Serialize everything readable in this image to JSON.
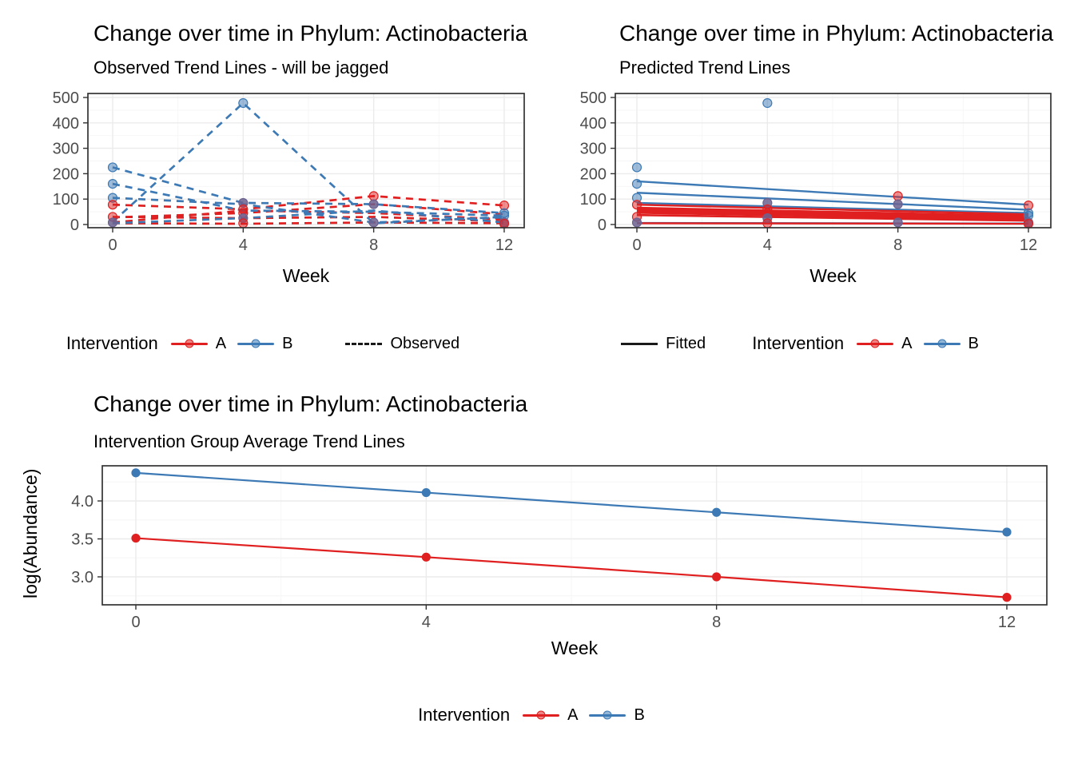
{
  "colors": {
    "A": "#E02020",
    "B": "#3D7AB5",
    "AB": "#6C6290",
    "grid_major": "#EBEBEB",
    "grid_minor": "#F5F5F5",
    "panel_border": "#333333",
    "tick_text": "#4D4D4D",
    "legend_line": "#1A1A1A"
  },
  "legends": {
    "observed": {
      "title": "Intervention",
      "item_a": "A",
      "item_b": "B",
      "linetype_label": "Observed"
    },
    "predicted": {
      "linetype_label": "Fitted",
      "title": "Intervention",
      "item_a": "A",
      "item_b": "B"
    },
    "average": {
      "title": "Intervention",
      "item_a": "A",
      "item_b": "B"
    }
  },
  "chart_data": [
    {
      "id": "observed",
      "type": "line",
      "title": "Change over time in Phylum: Actinobacteria",
      "subtitle": "Observed Trend Lines - will be jagged",
      "xlabel": "Week",
      "ylabel": "",
      "x": [
        0,
        4,
        8,
        12
      ],
      "x_ticks": [
        0,
        4,
        8,
        12
      ],
      "x_tick_labels": [
        "0",
        "4",
        "8",
        "12"
      ],
      "y_ticks": [
        0,
        100,
        200,
        300,
        400,
        500
      ],
      "y_tick_labels": [
        "0",
        "100",
        "200",
        "300",
        "400",
        "500"
      ],
      "ylim": [
        -13,
        515
      ],
      "linetype": "dashed",
      "legend_position": "bottom",
      "series": [
        {
          "group": "A",
          "values": [
            78,
            60,
            112,
            75
          ]
        },
        {
          "group": "A",
          "values": [
            28,
            45,
            80,
            40
          ]
        },
        {
          "group": "A",
          "values": [
            8,
            55,
            45,
            20
          ]
        },
        {
          "group": "A",
          "values": [
            30,
            25,
            30,
            12
          ]
        },
        {
          "group": "A",
          "values": [
            5,
            3,
            8,
            5
          ]
        },
        {
          "group": "B",
          "values": [
            225,
            85,
            80,
            45
          ]
        },
        {
          "group": "B",
          "values": [
            160,
            55,
            50,
            35
          ]
        },
        {
          "group": "B",
          "values": [
            105,
            80,
            8,
            28
          ]
        },
        {
          "group": "B",
          "values": [
            10,
            478,
            5,
            30
          ]
        },
        {
          "group": "B",
          "values": [
            5,
            25,
            55,
            8
          ]
        }
      ],
      "points": [
        {
          "x": 0,
          "y": 225,
          "g": "B"
        },
        {
          "x": 0,
          "y": 160,
          "g": "B"
        },
        {
          "x": 0,
          "y": 105,
          "g": "B"
        },
        {
          "x": 0,
          "y": 78,
          "g": "A"
        },
        {
          "x": 0,
          "y": 30,
          "g": "A"
        },
        {
          "x": 0,
          "y": 8,
          "g": "AB"
        },
        {
          "x": 4,
          "y": 478,
          "g": "B"
        },
        {
          "x": 4,
          "y": 85,
          "g": "AB"
        },
        {
          "x": 4,
          "y": 60,
          "g": "A"
        },
        {
          "x": 4,
          "y": 45,
          "g": "A"
        },
        {
          "x": 4,
          "y": 25,
          "g": "AB"
        },
        {
          "x": 4,
          "y": 5,
          "g": "A"
        },
        {
          "x": 8,
          "y": 112,
          "g": "A"
        },
        {
          "x": 8,
          "y": 80,
          "g": "AB"
        },
        {
          "x": 8,
          "y": 8,
          "g": "AB"
        },
        {
          "x": 12,
          "y": 75,
          "g": "A"
        },
        {
          "x": 12,
          "y": 45,
          "g": "B"
        },
        {
          "x": 12,
          "y": 35,
          "g": "B"
        },
        {
          "x": 12,
          "y": 8,
          "g": "AB"
        },
        {
          "x": 12,
          "y": 3,
          "g": "A"
        }
      ]
    },
    {
      "id": "predicted",
      "type": "line",
      "title": "Change over time in Phylum: Actinobacteria",
      "subtitle": "Predicted Trend Lines",
      "xlabel": "Week",
      "ylabel": "",
      "x": [
        0,
        4,
        8,
        12
      ],
      "x_ticks": [
        0,
        4,
        8,
        12
      ],
      "x_tick_labels": [
        "0",
        "4",
        "8",
        "12"
      ],
      "y_ticks": [
        0,
        100,
        200,
        300,
        400,
        500
      ],
      "y_tick_labels": [
        "0",
        "100",
        "200",
        "300",
        "400",
        "500"
      ],
      "ylim": [
        -13,
        515
      ],
      "linetype": "solid",
      "legend_position": "bottom",
      "series": [
        {
          "group": "B",
          "x": [
            0,
            12
          ],
          "values": [
            170,
            78
          ],
          "w": 2.4
        },
        {
          "group": "B",
          "x": [
            0,
            12
          ],
          "values": [
            125,
            58
          ],
          "w": 2.4
        },
        {
          "group": "B",
          "x": [
            0,
            12
          ],
          "values": [
            85,
            45
          ],
          "w": 2.4
        },
        {
          "group": "B",
          "x": [
            0,
            12
          ],
          "values": [
            6,
            4
          ],
          "w": 2.4
        },
        {
          "group": "A",
          "x": [
            0,
            12
          ],
          "values": [
            78,
            40
          ],
          "w": 2.4
        },
        {
          "group": "A",
          "x": [
            0,
            12
          ],
          "values": [
            62,
            30
          ],
          "w": 5
        },
        {
          "group": "A",
          "x": [
            0,
            12
          ],
          "values": [
            55,
            25
          ],
          "w": 5
        },
        {
          "group": "A",
          "x": [
            0,
            12
          ],
          "values": [
            47,
            21
          ],
          "w": 3.2
        },
        {
          "group": "A",
          "x": [
            0,
            12
          ],
          "values": [
            37,
            15
          ],
          "w": 2.6
        },
        {
          "group": "A",
          "x": [
            0,
            12
          ],
          "values": [
            5,
            3
          ],
          "w": 2.4
        }
      ],
      "points": [
        {
          "x": 0,
          "y": 225,
          "g": "B"
        },
        {
          "x": 0,
          "y": 160,
          "g": "B"
        },
        {
          "x": 0,
          "y": 105,
          "g": "B"
        },
        {
          "x": 0,
          "y": 78,
          "g": "A"
        },
        {
          "x": 0,
          "y": 30,
          "g": "A"
        },
        {
          "x": 0,
          "y": 8,
          "g": "AB"
        },
        {
          "x": 4,
          "y": 478,
          "g": "B"
        },
        {
          "x": 4,
          "y": 85,
          "g": "AB"
        },
        {
          "x": 4,
          "y": 60,
          "g": "A"
        },
        {
          "x": 4,
          "y": 45,
          "g": "A"
        },
        {
          "x": 4,
          "y": 25,
          "g": "AB"
        },
        {
          "x": 4,
          "y": 5,
          "g": "A"
        },
        {
          "x": 8,
          "y": 112,
          "g": "A"
        },
        {
          "x": 8,
          "y": 80,
          "g": "AB"
        },
        {
          "x": 8,
          "y": 8,
          "g": "AB"
        },
        {
          "x": 12,
          "y": 75,
          "g": "A"
        },
        {
          "x": 12,
          "y": 45,
          "g": "B"
        },
        {
          "x": 12,
          "y": 35,
          "g": "B"
        },
        {
          "x": 12,
          "y": 8,
          "g": "AB"
        },
        {
          "x": 12,
          "y": 3,
          "g": "A"
        }
      ]
    },
    {
      "id": "average",
      "type": "line",
      "title": "Change over time in Phylum: Actinobacteria",
      "subtitle": "Intervention Group Average Trend Lines",
      "xlabel": "Week",
      "ylabel": "log(Abundance)",
      "x": [
        0,
        4,
        8,
        12
      ],
      "x_ticks": [
        0,
        4,
        8,
        12
      ],
      "x_tick_labels": [
        "0",
        "4",
        "8",
        "12"
      ],
      "y_ticks": [
        3.0,
        3.5,
        4.0
      ],
      "y_tick_labels": [
        "3.0",
        "3.5",
        "4.0"
      ],
      "ylim": [
        2.63,
        4.46
      ],
      "linetype": "solid",
      "legend_position": "bottom",
      "show_points": true,
      "series": [
        {
          "group": "A",
          "values": [
            3.51,
            3.26,
            3.0,
            2.73
          ]
        },
        {
          "group": "B",
          "values": [
            4.37,
            4.11,
            3.85,
            3.59
          ]
        }
      ]
    }
  ]
}
